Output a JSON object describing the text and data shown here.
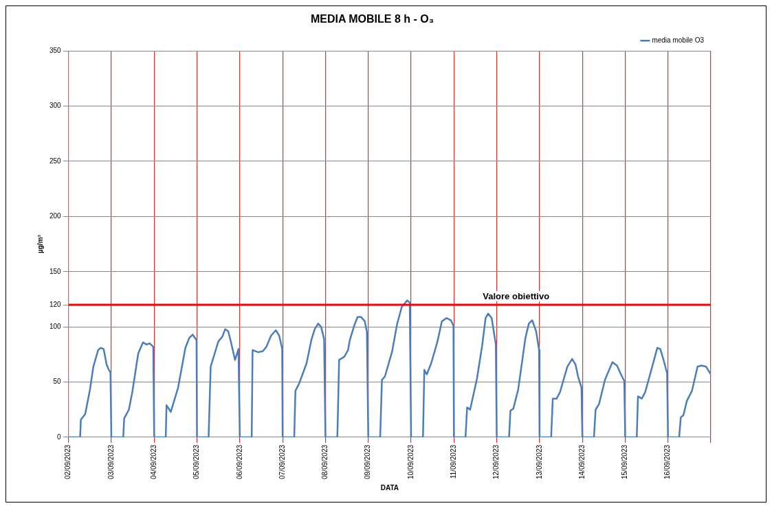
{
  "chart_data": {
    "type": "line",
    "title": "MEDIA MOBILE 8 h - O₃",
    "xlabel": "DATA",
    "ylabel": "µg/m³",
    "x": [
      "2023-09-02T00:00",
      "2023-09-02T06:30",
      "2023-09-02T06:55",
      "2023-09-02T09:20",
      "2023-09-02T12:00",
      "2023-09-02T13:55",
      "2023-09-02T16:35",
      "2023-09-02T18:00",
      "2023-09-02T19:40",
      "2023-09-02T21:20",
      "2023-09-02T22:35",
      "2023-09-02T23:30",
      "2023-09-03T00:00",
      "2023-09-03T06:40",
      "2023-09-03T07:10",
      "2023-09-03T09:50",
      "2023-09-03T11:45",
      "2023-09-03T15:05",
      "2023-09-03T17:45",
      "2023-09-03T19:40",
      "2023-09-03T21:35",
      "2023-09-03T23:30",
      "2023-09-04T00:00",
      "2023-09-04T06:30",
      "2023-09-04T06:55",
      "2023-09-04T09:20",
      "2023-09-04T13:25",
      "2023-09-04T17:30",
      "2023-09-04T19:40",
      "2023-09-04T21:35",
      "2023-09-04T23:45",
      "2023-09-05T00:00",
      "2023-09-05T06:30",
      "2023-09-05T07:40",
      "2023-09-05T12:00",
      "2023-09-05T14:10",
      "2023-09-05T15:50",
      "2023-09-05T17:30",
      "2023-09-05T18:55",
      "2023-09-05T21:20",
      "2023-09-05T23:15",
      "2023-09-06T00:00",
      "2023-09-06T06:40",
      "2023-09-06T07:10",
      "2023-09-06T10:20",
      "2023-09-06T12:55",
      "2023-09-06T14:55",
      "2023-09-06T17:30",
      "2023-09-06T20:10",
      "2023-09-06T22:05",
      "2023-09-06T23:45",
      "2023-09-07T00:00",
      "2023-09-07T06:30",
      "2023-09-07T07:10",
      "2023-09-07T09:20",
      "2023-09-07T13:25",
      "2023-09-07T16:05",
      "2023-09-07T18:00",
      "2023-09-07T19:55",
      "2023-09-07T21:35",
      "2023-09-07T23:15",
      "2023-09-08T00:00",
      "2023-09-08T06:40",
      "2023-09-08T07:40",
      "2023-09-08T10:35",
      "2023-09-08T12:40",
      "2023-09-08T13:40",
      "2023-09-08T16:05",
      "2023-09-08T18:00",
      "2023-09-08T19:55",
      "2023-09-08T22:05",
      "2023-09-08T23:15",
      "2023-09-09T00:00",
      "2023-09-09T06:40",
      "2023-09-09T07:40",
      "2023-09-09T09:20",
      "2023-09-09T13:25",
      "2023-09-09T16:05",
      "2023-09-09T18:45",
      "2023-09-09T21:50",
      "2023-09-09T23:15",
      "2023-09-10T00:00",
      "2023-09-10T06:40",
      "2023-09-10T07:25",
      "2023-09-10T08:50",
      "2023-09-10T11:15",
      "2023-09-10T14:40",
      "2023-09-10T17:15",
      "2023-09-10T19:55",
      "2023-09-10T22:20",
      "2023-09-10T23:45",
      "2023-09-11T00:00",
      "2023-09-11T06:30",
      "2023-09-11T07:25",
      "2023-09-11T09:05",
      "2023-09-11T12:55",
      "2023-09-11T15:50",
      "2023-09-11T17:45",
      "2023-09-11T19:10",
      "2023-09-11T21:10",
      "2023-09-11T23:30",
      "2023-09-12T00:00",
      "2023-09-12T06:55",
      "2023-09-12T07:40",
      "2023-09-12T09:20",
      "2023-09-12T12:00",
      "2023-09-12T16:05",
      "2023-09-12T18:00",
      "2023-09-12T19:55",
      "2023-09-12T22:05",
      "2023-09-12T23:45",
      "2023-09-13T00:00",
      "2023-09-13T06:30",
      "2023-09-13T07:25",
      "2023-09-13T09:35",
      "2023-09-13T11:30",
      "2023-09-13T15:35",
      "2023-09-13T18:15",
      "2023-09-13T20:10",
      "2023-09-13T21:35",
      "2023-09-13T23:30",
      "2023-09-14T00:00",
      "2023-09-14T06:30",
      "2023-09-14T07:25",
      "2023-09-14T09:20",
      "2023-09-14T12:40",
      "2023-09-14T16:50",
      "2023-09-14T19:25",
      "2023-09-14T21:20",
      "2023-09-14T23:30",
      "2023-09-15T00:00",
      "2023-09-15T06:30",
      "2023-09-15T07:10",
      "2023-09-15T09:20",
      "2023-09-15T11:15",
      "2023-09-15T15:20",
      "2023-09-15T18:00",
      "2023-09-15T19:40",
      "2023-09-15T21:20",
      "2023-09-15T23:30",
      "2023-09-16T00:00",
      "2023-09-16T06:15",
      "2023-09-16T07:10",
      "2023-09-16T08:40",
      "2023-09-16T10:35",
      "2023-09-16T13:25",
      "2023-09-16T16:35",
      "2023-09-16T18:45",
      "2023-09-16T21:20",
      "2023-09-17T00:00"
    ],
    "series": [
      {
        "name": "media mobile O3",
        "color": "#4a7ebb",
        "values": [
          0,
          0,
          16,
          21,
          43,
          64,
          79,
          81,
          80,
          66,
          61,
          59,
          0,
          0,
          17,
          25,
          41,
          76,
          86,
          84,
          85,
          82,
          0,
          0,
          29,
          23,
          45,
          81,
          90,
          93,
          88,
          0,
          0,
          64,
          87,
          91,
          98,
          96,
          87,
          70,
          80,
          0,
          0,
          79,
          77,
          78,
          82,
          92,
          97,
          92,
          80,
          0,
          0,
          42,
          49,
          67,
          88,
          98,
          103,
          100,
          89,
          0,
          0,
          70,
          73,
          79,
          88,
          101,
          109,
          109,
          105,
          95,
          0,
          0,
          52,
          55,
          78,
          102,
          118,
          124,
          122,
          0,
          0,
          61,
          57,
          67,
          86,
          105,
          108,
          106,
          101,
          0,
          0,
          27,
          25,
          53,
          83,
          108,
          112,
          108,
          84,
          0,
          0,
          24,
          26,
          43,
          90,
          103,
          106,
          96,
          79,
          0,
          0,
          35,
          35,
          41,
          64,
          71,
          66,
          55,
          45,
          0,
          0,
          25,
          30,
          52,
          68,
          65,
          58,
          51,
          0,
          0,
          37,
          35,
          41,
          65,
          81,
          80,
          71,
          58,
          0,
          0,
          18,
          20,
          33,
          42,
          64,
          65,
          64,
          57
        ]
      }
    ],
    "xlim": [
      "2023-09-02",
      "2023-09-17"
    ],
    "xticks": [
      {
        "value": "2023-09-02",
        "label": "02/09/2023"
      },
      {
        "value": "2023-09-03",
        "label": "03/09/2023"
      },
      {
        "value": "2023-09-04",
        "label": "04/09/2023"
      },
      {
        "value": "2023-09-05",
        "label": "05/09/2023"
      },
      {
        "value": "2023-09-06",
        "label": "06/09/2023"
      },
      {
        "value": "2023-09-07",
        "label": "07/09/2023"
      },
      {
        "value": "2023-09-08",
        "label": "08/09/2023"
      },
      {
        "value": "2023-09-09",
        "label": "09/09/2023"
      },
      {
        "value": "2023-09-10",
        "label": "10/09/2023"
      },
      {
        "value": "2023-09-11",
        "label": "11/09/2023"
      },
      {
        "value": "2023-09-12",
        "label": "12/09/2023"
      },
      {
        "value": "2023-09-13",
        "label": "13/09/2023"
      },
      {
        "value": "2023-09-14",
        "label": "14/09/2023"
      },
      {
        "value": "2023-09-15",
        "label": "15/09/2023"
      },
      {
        "value": "2023-09-16",
        "label": "16/09/2023"
      },
      {
        "value": "2023-09-17",
        "label": null
      }
    ],
    "ylim": [
      0,
      350
    ],
    "yticks": [
      0,
      50,
      100,
      120,
      150,
      200,
      250,
      300,
      350
    ],
    "ref_lines": [
      {
        "axis": "y",
        "value": 120,
        "label": "Valore obiettivo",
        "color": "#ff0000"
      }
    ],
    "grid": true,
    "legend": "top right",
    "marker": "none",
    "line_style": "solid"
  }
}
